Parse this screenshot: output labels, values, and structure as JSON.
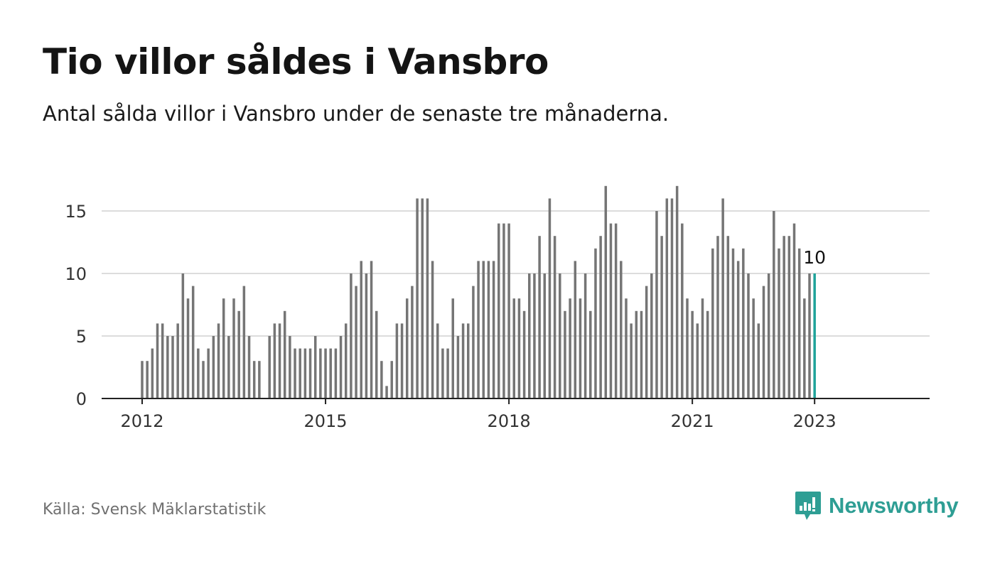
{
  "title": "Tio villor såldes i Vansbro",
  "subtitle": "Antal sålda villor i Vansbro under de senaste tre månaderna.",
  "source": "Källa: Svensk Mäklarstatistik",
  "brand": {
    "name": "Newsworthy",
    "icon": "newsworthy-logo-icon",
    "color": "#2e9e94"
  },
  "colors": {
    "bar": "#757575",
    "highlight": "#1fa39a",
    "grid": "#dcdcdc",
    "axis": "#222222"
  },
  "chart_data": {
    "type": "bar",
    "start": "2012-01",
    "x_ticks": [
      "2012",
      "2015",
      "2018",
      "2021",
      "2023"
    ],
    "y_ticks": [
      "0",
      "5",
      "10",
      "15"
    ],
    "ylim": [
      0,
      17
    ],
    "grid": true,
    "highlight_label": "10",
    "values": [
      3,
      3,
      4,
      6,
      6,
      5,
      5,
      6,
      10,
      8,
      9,
      4,
      3,
      4,
      5,
      6,
      8,
      5,
      8,
      7,
      9,
      5,
      3,
      3,
      null,
      5,
      6,
      6,
      7,
      5,
      4,
      4,
      4,
      4,
      5,
      4,
      4,
      4,
      4,
      5,
      6,
      10,
      9,
      11,
      10,
      11,
      7,
      3,
      1,
      3,
      6,
      6,
      8,
      9,
      16,
      16,
      16,
      11,
      6,
      4,
      4,
      8,
      5,
      6,
      6,
      9,
      11,
      11,
      11,
      11,
      14,
      14,
      14,
      8,
      8,
      7,
      10,
      10,
      13,
      10,
      16,
      13,
      10,
      7,
      8,
      11,
      8,
      10,
      7,
      12,
      13,
      17,
      14,
      14,
      11,
      8,
      6,
      7,
      7,
      9,
      10,
      15,
      13,
      16,
      16,
      17,
      14,
      8,
      7,
      6,
      8,
      7,
      12,
      13,
      16,
      13,
      12,
      11,
      12,
      10,
      8,
      6,
      9,
      10,
      15,
      12,
      13,
      13,
      14,
      12,
      8,
      10,
      10
    ]
  }
}
